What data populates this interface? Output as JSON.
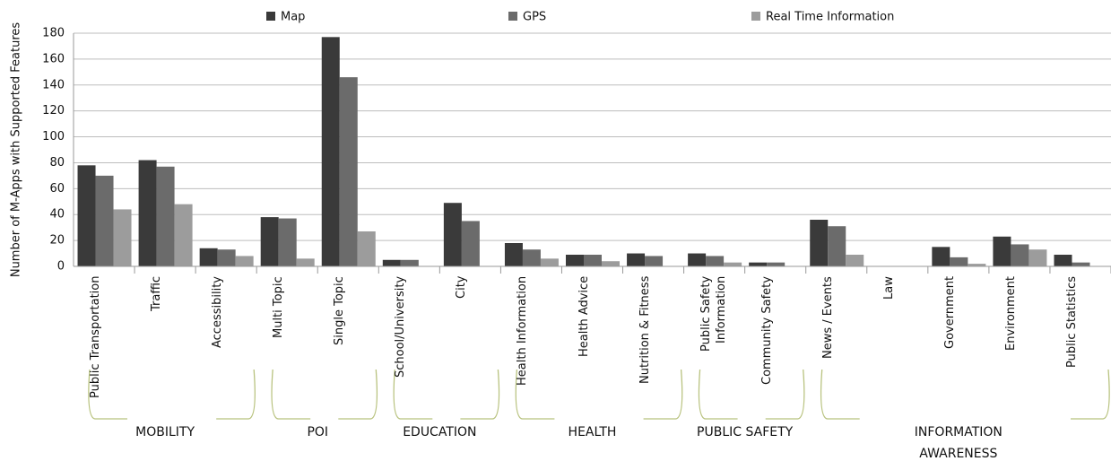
{
  "chart_data": {
    "type": "bar",
    "y_label": "Number of M-Apps with Supported Features",
    "groups": [
      {
        "name": "MOBILITY",
        "categories": [
          "Public Transportation",
          "Traffic",
          "Accessibility"
        ]
      },
      {
        "name": "POI",
        "categories": [
          "Multi Topic",
          "Single Topic"
        ]
      },
      {
        "name": "EDUCATION",
        "categories": [
          "School/University",
          "City"
        ]
      },
      {
        "name": "HEALTH",
        "categories": [
          "Health Information",
          "Health Advice",
          "Nutrition & Fitness"
        ]
      },
      {
        "name": "PUBLIC SAFETY",
        "categories": [
          "Public Safety Information",
          "Community Safety"
        ]
      },
      {
        "name": "INFORMATION AWARENESS",
        "categories": [
          "News / Events",
          "Law",
          "Government",
          "Environment",
          "Public Statistics"
        ]
      }
    ],
    "series": [
      {
        "name": "Map",
        "color": "#3a3a3a",
        "values": [
          78,
          82,
          14,
          38,
          177,
          5,
          49,
          18,
          9,
          10,
          10,
          3,
          36,
          0,
          15,
          23,
          9
        ]
      },
      {
        "name": "GPS",
        "color": "#6b6b6b",
        "values": [
          70,
          77,
          13,
          37,
          146,
          5,
          35,
          13,
          9,
          8,
          8,
          3,
          31,
          0,
          7,
          17,
          3
        ]
      },
      {
        "name": "Real Time Information",
        "color": "#9c9c9c",
        "values": [
          44,
          48,
          8,
          6,
          27,
          0,
          0,
          6,
          4,
          0,
          3,
          0,
          9,
          0,
          2,
          13,
          0
        ]
      }
    ],
    "ylim": [
      0,
      180
    ],
    "yticks": [
      0,
      20,
      40,
      60,
      80,
      100,
      120,
      140,
      160,
      180
    ],
    "grid": true
  }
}
